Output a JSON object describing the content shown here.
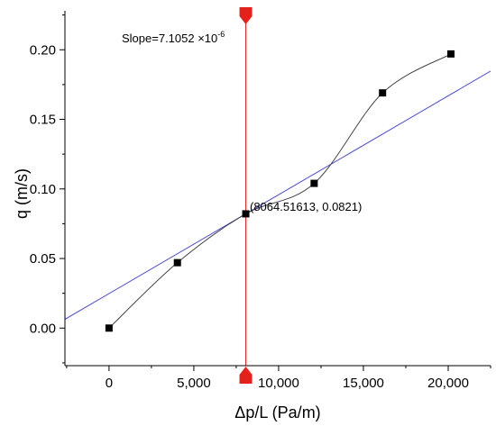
{
  "chart_data": {
    "type": "scatter",
    "xlabel": "Δp/L (Pa/m)",
    "ylabel": "q (m/s)",
    "xlim": [
      -2600,
      22500
    ],
    "ylim": [
      -0.027,
      0.228
    ],
    "x_ticks": [
      0,
      5000,
      10000,
      15000,
      20000
    ],
    "x_tick_labels": [
      "0",
      "5,000",
      "10,000",
      "15,000",
      "20,000"
    ],
    "y_ticks": [
      0.0,
      0.05,
      0.1,
      0.15,
      0.2
    ],
    "y_tick_labels": [
      "0.00",
      "0.05",
      "0.10",
      "0.15",
      "0.20"
    ],
    "series": [
      {
        "x": [
          0,
          4032,
          8064.51613,
          12097,
          16129,
          20161
        ],
        "y": [
          0.0,
          0.047,
          0.0821,
          0.104,
          0.169,
          0.197
        ],
        "marker": "square",
        "color": "#000000"
      }
    ],
    "tangent_line": {
      "x0": 8064.51613,
      "y0": 0.0821,
      "slope": 7.1052e-06,
      "color": "#4d4ddb"
    },
    "cursor": {
      "x": 8064.51613,
      "color": "#e8201a"
    },
    "annotations": {
      "slope_prefix": "Slope=7.1052 ×10",
      "slope_exponent": "-6",
      "point_label": "(8064.51613, 0.0821)"
    },
    "grid": false
  }
}
